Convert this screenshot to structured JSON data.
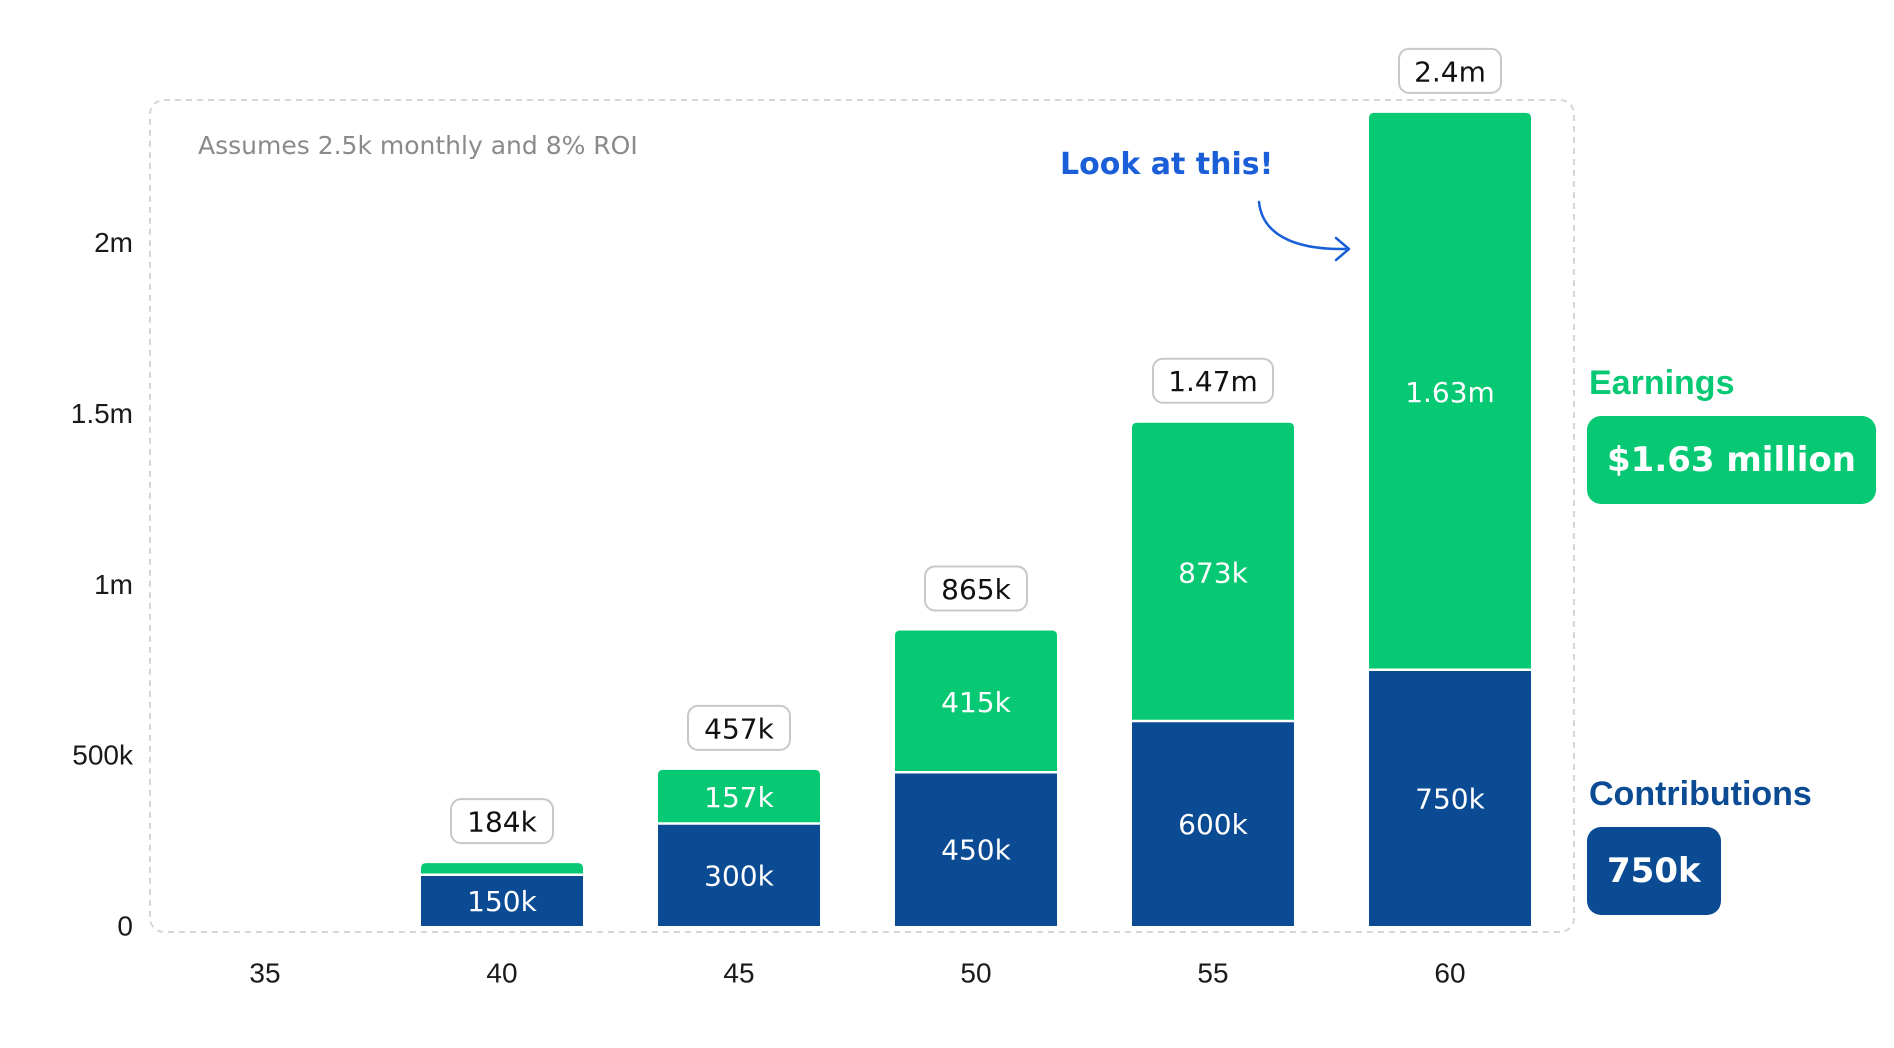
{
  "chart_data": {
    "type": "bar",
    "stacked": true,
    "annotation_text": "Assumes 2.5k monthly and 8% ROI",
    "callout": "Look at this!",
    "categories": [
      "35",
      "40",
      "45",
      "50",
      "55",
      "60"
    ],
    "y_ticks": [
      "0",
      "500k",
      "1m",
      "1.5m",
      "2m"
    ],
    "y_tick_values": [
      0,
      500000,
      1000000,
      1500000,
      2000000
    ],
    "ylim": [
      0,
      2400000
    ],
    "grid": false,
    "series": [
      {
        "name": "Contributions",
        "color": "#0a4b94",
        "values": [
          0,
          150000,
          300000,
          450000,
          600000,
          750000
        ],
        "labels": [
          "",
          "150k",
          "300k",
          "450k",
          "600k",
          "750k"
        ]
      },
      {
        "name": "Earnings",
        "color": "#07c974",
        "values": [
          0,
          34000,
          157000,
          415000,
          873000,
          1630000
        ],
        "labels": [
          "",
          "",
          "157k",
          "415k",
          "873k",
          "1.63m"
        ]
      }
    ],
    "totals": [
      "",
      "184k",
      "457k",
      "865k",
      "1.47m",
      "2.4m"
    ],
    "legend": [
      {
        "name": "Earnings",
        "value": "$1.63 million",
        "color": "#07c974"
      },
      {
        "name": "Contributions",
        "value": "750k",
        "color": "#0a4b94"
      }
    ]
  }
}
